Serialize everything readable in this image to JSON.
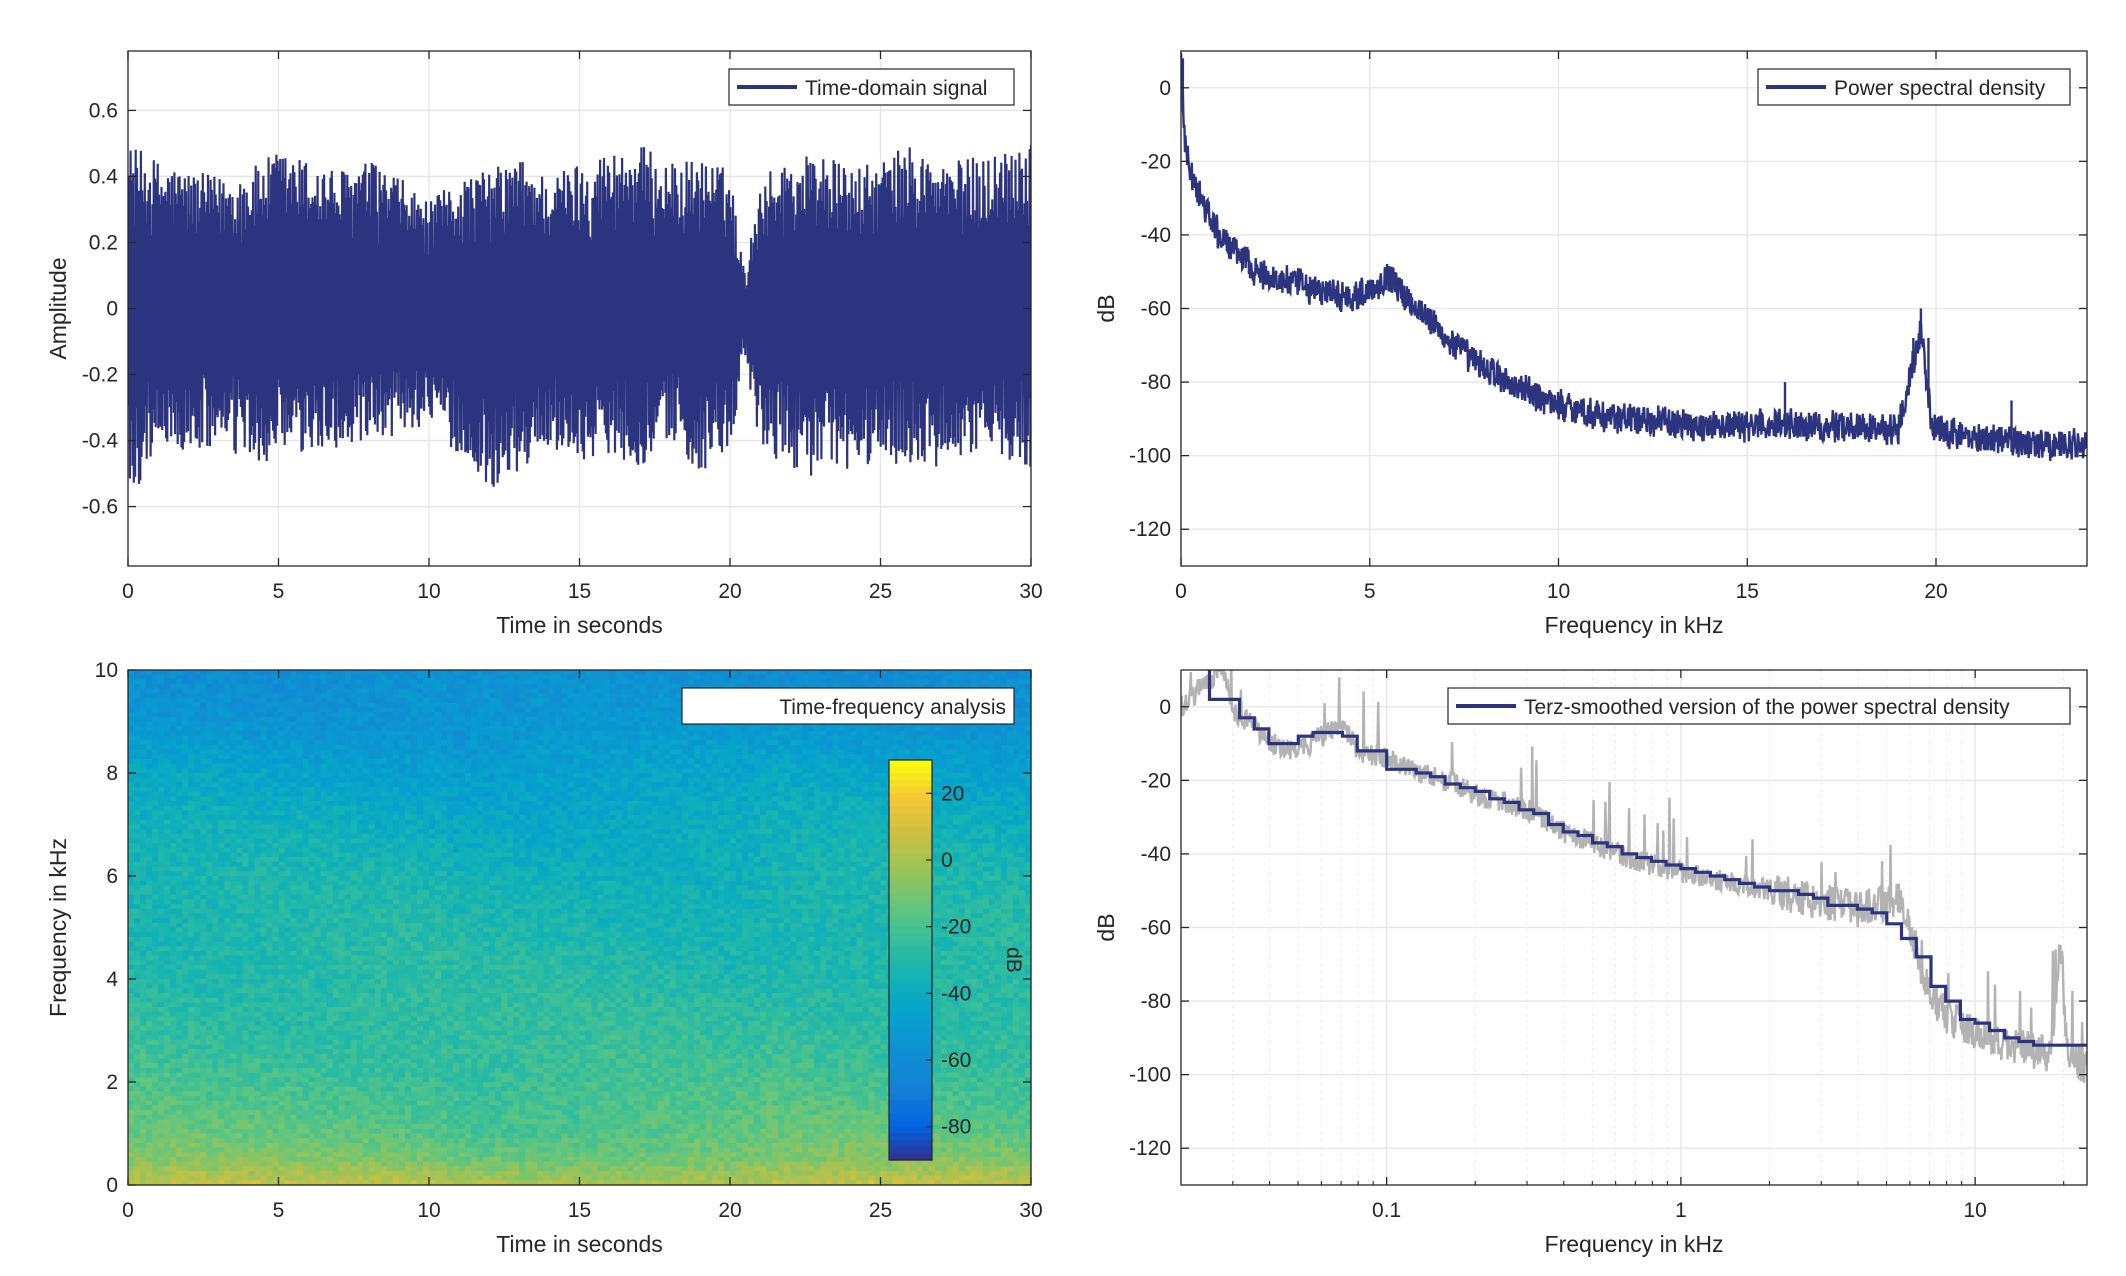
{
  "chart_data": [
    {
      "id": "time-domain",
      "type": "line",
      "xlabel": "Time in seconds",
      "ylabel": "Amplitude",
      "xlim": [
        0,
        30
      ],
      "ylim": [
        -0.78,
        0.78
      ],
      "xticks": [
        0,
        5,
        10,
        15,
        20,
        25,
        30
      ],
      "xticklabels": [
        "0",
        "5",
        "10",
        "15",
        "20",
        "25",
        "30"
      ],
      "yticks": [
        0.6,
        0.4,
        0.2,
        0,
        -0.2,
        -0.4,
        -0.6
      ],
      "yticklabels": [
        "0.6",
        "0.4",
        "0.2",
        "0",
        "-0.2",
        "-0.4",
        "-0.6"
      ],
      "grid": true,
      "legend_position": "top-right",
      "series": [
        {
          "name": "Time-domain signal",
          "color": "#2c347f",
          "envelope_t": [
            0,
            1,
            2,
            3,
            4,
            5,
            6,
            7,
            8,
            9,
            10,
            11,
            12,
            13,
            14,
            15,
            16,
            17,
            18,
            19,
            20,
            20.5,
            21,
            22,
            23,
            24,
            25,
            26,
            27,
            28,
            29,
            30
          ],
          "envelope_max": [
            0.5,
            0.45,
            0.42,
            0.4,
            0.42,
            0.48,
            0.45,
            0.42,
            0.45,
            0.4,
            0.32,
            0.4,
            0.42,
            0.46,
            0.4,
            0.45,
            0.48,
            0.5,
            0.44,
            0.46,
            0.42,
            0.1,
            0.4,
            0.46,
            0.48,
            0.42,
            0.45,
            0.5,
            0.44,
            0.46,
            0.48,
            0.55
          ],
          "envelope_min": [
            -0.62,
            -0.4,
            -0.45,
            -0.42,
            -0.48,
            -0.46,
            -0.45,
            -0.42,
            -0.44,
            -0.38,
            -0.35,
            -0.45,
            -0.55,
            -0.5,
            -0.42,
            -0.46,
            -0.44,
            -0.48,
            -0.4,
            -0.5,
            -0.46,
            -0.15,
            -0.44,
            -0.48,
            -0.52,
            -0.5,
            -0.46,
            -0.48,
            -0.5,
            -0.44,
            -0.45,
            -0.48
          ]
        }
      ]
    },
    {
      "id": "psd",
      "type": "line",
      "xlabel": "Frequency in kHz",
      "ylabel": "dB",
      "xlim": [
        0,
        24
      ],
      "ylim": [
        -130,
        10
      ],
      "xticks": [
        0,
        5,
        10,
        15,
        20
      ],
      "xticklabels": [
        "0",
        "5",
        "10",
        "15",
        "20"
      ],
      "yticks": [
        0,
        -20,
        -40,
        -60,
        -80,
        -100,
        -120
      ],
      "yticklabels": [
        "0",
        "-20",
        "-40",
        "-60",
        "-80",
        "-100",
        "-120"
      ],
      "grid": true,
      "legend_position": "top-right",
      "series": [
        {
          "name": "Power spectral density",
          "color": "#2c347f",
          "x": [
            0,
            0.1,
            0.3,
            0.6,
            1,
            1.5,
            2,
            2.5,
            3,
            3.5,
            4,
            4.5,
            5,
            5.5,
            6,
            6.5,
            7,
            8,
            9,
            10,
            11,
            12,
            13,
            14,
            15,
            16,
            17,
            18,
            19,
            19.3,
            19.6,
            19.9,
            20.5,
            21,
            22,
            23,
            24
          ],
          "y": [
            8,
            -15,
            -25,
            -32,
            -40,
            -45,
            -50,
            -52,
            -53,
            -55,
            -56,
            -57,
            -55,
            -51,
            -57,
            -62,
            -68,
            -76,
            -82,
            -86,
            -89,
            -90,
            -91,
            -92,
            -92,
            -91,
            -92,
            -92,
            -93,
            -78,
            -66,
            -93,
            -94,
            -95,
            -96,
            -97,
            -97
          ]
        }
      ],
      "peaks": [
        {
          "x": 0.05,
          "y": 8
        },
        {
          "x": 19.4,
          "y": -68
        },
        {
          "x": 19.6,
          "y": -60
        },
        {
          "x": 19.8,
          "y": -68
        },
        {
          "x": 16,
          "y": -80
        },
        {
          "x": 22,
          "y": -85
        }
      ]
    },
    {
      "id": "spectrogram",
      "type": "heatmap",
      "title": "Time-frequency analysis",
      "xlabel": "Time in seconds",
      "ylabel": "Frequency in kHz",
      "xlim": [
        0,
        30
      ],
      "ylim": [
        0,
        10
      ],
      "xticks": [
        0,
        5,
        10,
        15,
        20,
        25,
        30
      ],
      "xticklabels": [
        "0",
        "5",
        "10",
        "15",
        "20",
        "25",
        "30"
      ],
      "yticks": [
        10,
        8,
        6,
        4,
        2,
        0
      ],
      "yticklabels": [
        "10",
        "8",
        "6",
        "4",
        "2",
        "0"
      ],
      "colorbar": {
        "label": "dB",
        "limits": [
          -90,
          30
        ],
        "ticks": [
          20,
          0,
          -20,
          -40,
          -60,
          -80
        ],
        "ticklabels": [
          "20",
          "0",
          "-20",
          "-40",
          "-60",
          "-80"
        ],
        "colormap": "parula"
      },
      "level_profile_freq_khz": [
        0,
        0.2,
        0.5,
        1,
        2,
        3,
        4,
        5,
        6,
        7,
        8,
        9,
        10
      ],
      "level_profile_db": [
        5,
        0,
        -8,
        -14,
        -20,
        -24,
        -27,
        -30,
        -33,
        -38,
        -44,
        -52,
        -56
      ]
    },
    {
      "id": "terz",
      "type": "line",
      "xlabel": "Frequency in kHz",
      "ylabel": "dB",
      "xscale": "log",
      "xlim": [
        0.02,
        24
      ],
      "ylim": [
        -130,
        10
      ],
      "xticks": [
        0.1,
        1,
        10
      ],
      "xticklabels": [
        "0.1",
        "1",
        "10"
      ],
      "yticks": [
        0,
        -20,
        -40,
        -60,
        -80,
        -100,
        -120
      ],
      "yticklabels": [
        "0",
        "-20",
        "-40",
        "-60",
        "-80",
        "-100",
        "-120"
      ],
      "grid": true,
      "legend_position": "top-right",
      "series": [
        {
          "name": "Terz-smoothed version of the power spectral density",
          "color": "#2c347f",
          "step": true,
          "x": [
            0.02,
            0.0224,
            0.025,
            0.0282,
            0.0316,
            0.0355,
            0.0398,
            0.0447,
            0.0501,
            0.0562,
            0.0631,
            0.0708,
            0.0794,
            0.0891,
            0.1,
            0.112,
            0.126,
            0.141,
            0.158,
            0.178,
            0.2,
            0.224,
            0.251,
            0.282,
            0.316,
            0.355,
            0.398,
            0.447,
            0.501,
            0.562,
            0.631,
            0.708,
            0.794,
            0.891,
            1,
            1.12,
            1.26,
            1.41,
            1.58,
            1.78,
            2,
            2.24,
            2.51,
            2.82,
            3.16,
            3.55,
            3.98,
            4.47,
            5.01,
            5.62,
            6.31,
            7.08,
            7.94,
            8.91,
            10,
            11.2,
            12.6,
            14.1,
            15.8,
            17.8,
            20,
            22.4
          ],
          "y": [
            20,
            15,
            2,
            2,
            -3,
            -6,
            -10,
            -10,
            -8,
            -7,
            -7,
            -8,
            -12,
            -12,
            -17,
            -17,
            -18,
            -19,
            -21,
            -22,
            -23,
            -25,
            -26,
            -28,
            -29,
            -32,
            -34,
            -35,
            -37,
            -38,
            -40,
            -41,
            -42,
            -43,
            -44,
            -45,
            -46,
            -47,
            -48,
            -49,
            -50,
            -50,
            -51,
            -52,
            -54,
            -54,
            -55,
            -56,
            -59,
            -63,
            -68,
            -76,
            -80,
            -85,
            -86,
            -88,
            -90,
            -91,
            -92,
            -92,
            -92,
            -92
          ]
        },
        {
          "name": "",
          "color": "#b3b3b3",
          "x": [
            0.02,
            0.025,
            0.028,
            0.03,
            0.035,
            0.04,
            0.05,
            0.06,
            0.07,
            0.08,
            0.1,
            0.13,
            0.16,
            0.2,
            0.3,
            0.4,
            0.6,
            0.8,
            1,
            1.5,
            2,
            3,
            4,
            5,
            5.5,
            6,
            6.5,
            7,
            8,
            10,
            12,
            15,
            18,
            19.5,
            20.5,
            22,
            24
          ],
          "y": [
            0,
            8,
            10,
            -2,
            -5,
            -10,
            -12,
            -8,
            -5,
            -12,
            -14,
            -18,
            -20,
            -24,
            -28,
            -34,
            -40,
            -43,
            -45,
            -48,
            -50,
            -53,
            -55,
            -53,
            -52,
            -60,
            -70,
            -78,
            -84,
            -89,
            -92,
            -93,
            -95,
            -62,
            -93,
            -96,
            -98
          ]
        }
      ]
    }
  ]
}
